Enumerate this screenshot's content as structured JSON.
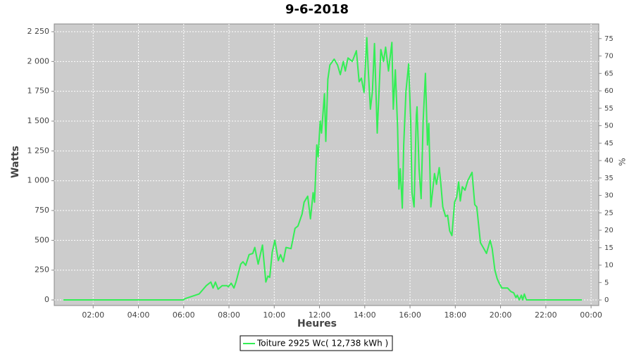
{
  "chart_data": {
    "type": "line",
    "title": "9-6-2018",
    "x_label": "Heures",
    "y_label": "Watts",
    "y2_label": "%",
    "x": [
      0.68,
      6.0,
      6.05,
      6.68,
      7.0,
      7.2,
      7.3,
      7.4,
      7.52,
      7.7,
      7.91,
      7.97,
      8.1,
      8.22,
      8.31,
      8.52,
      8.62,
      8.74,
      8.89,
      9.05,
      9.14,
      9.29,
      9.48,
      9.63,
      9.72,
      9.8,
      9.91,
      10.03,
      10.18,
      10.28,
      10.4,
      10.52,
      10.74,
      10.92,
      11.05,
      11.23,
      11.32,
      11.48,
      11.6,
      11.72,
      11.78,
      11.88,
      11.94,
      12.03,
      12.09,
      12.22,
      12.28,
      12.37,
      12.46,
      12.65,
      12.8,
      12.92,
      13.05,
      13.14,
      13.26,
      13.45,
      13.63,
      13.75,
      13.85,
      13.97,
      14.09,
      14.15,
      14.25,
      14.34,
      14.43,
      14.55,
      14.62,
      14.71,
      14.83,
      14.92,
      15.05,
      15.2,
      15.26,
      15.35,
      15.45,
      15.51,
      15.57,
      15.66,
      15.72,
      15.82,
      15.94,
      16.03,
      16.09,
      16.18,
      16.28,
      16.31,
      16.4,
      16.49,
      16.58,
      16.68,
      16.77,
      16.83,
      16.92,
      17.02,
      17.08,
      17.17,
      17.29,
      17.35,
      17.45,
      17.57,
      17.66,
      17.75,
      17.85,
      17.97,
      18.06,
      18.15,
      18.22,
      18.31,
      18.43,
      18.55,
      18.74,
      18.86,
      18.95,
      19.11,
      19.2,
      19.29,
      19.38,
      19.54,
      19.63,
      19.75,
      19.85,
      19.94,
      20.06,
      20.31,
      20.46,
      20.58,
      20.68,
      20.74,
      20.83,
      20.92,
      20.98,
      21.05,
      21.14,
      23.6
    ],
    "series": [
      {
        "name": "Toiture 2925 Wc( 12,738 kWh )",
        "color": "#33ee55",
        "values": [
          0,
          0,
          10,
          50,
          120,
          150,
          100,
          150,
          90,
          120,
          120,
          110,
          140,
          100,
          150,
          300,
          320,
          290,
          380,
          390,
          440,
          300,
          460,
          150,
          200,
          190,
          400,
          500,
          330,
          380,
          320,
          440,
          430,
          600,
          620,
          720,
          820,
          870,
          680,
          900,
          820,
          1300,
          1200,
          1500,
          1400,
          1730,
          1330,
          1850,
          1970,
          2020,
          1970,
          1890,
          2000,
          1920,
          2030,
          2000,
          2090,
          1830,
          1860,
          1740,
          2200,
          1950,
          1600,
          1750,
          2150,
          1400,
          1700,
          2100,
          2000,
          2120,
          1920,
          2160,
          1600,
          1930,
          1450,
          930,
          1100,
          770,
          1300,
          1750,
          1980,
          1500,
          900,
          780,
          1550,
          1620,
          1100,
          850,
          1500,
          1900,
          1300,
          1480,
          780,
          950,
          1060,
          970,
          1110,
          1000,
          780,
          700,
          710,
          580,
          540,
          820,
          860,
          990,
          830,
          950,
          920,
          1000,
          1070,
          800,
          780,
          480,
          450,
          420,
          390,
          500,
          430,
          250,
          180,
          140,
          100,
          100,
          70,
          60,
          20,
          40,
          0,
          40,
          0,
          50,
          0,
          0
        ]
      }
    ],
    "xlim": [
      0.28,
      24.34
    ],
    "xticks": [
      {
        "value": 2,
        "label": "02:00"
      },
      {
        "value": 4,
        "label": "04:00"
      },
      {
        "value": 6,
        "label": "06:00"
      },
      {
        "value": 8,
        "label": "08:00"
      },
      {
        "value": 10,
        "label": "10:00"
      },
      {
        "value": 12,
        "label": "12:00"
      },
      {
        "value": 14,
        "label": "14:00"
      },
      {
        "value": 16,
        "label": "16:00"
      },
      {
        "value": 18,
        "label": "18:00"
      },
      {
        "value": 20,
        "label": "20:00"
      },
      {
        "value": 22,
        "label": "22:00"
      },
      {
        "value": 24,
        "label": "00:00"
      }
    ],
    "ylim": [
      -47,
      2315
    ],
    "yticks": [
      0,
      250,
      500,
      750,
      {
        "value": 1000,
        "label": "1 000"
      },
      {
        "value": 1250,
        "label": "1 250"
      },
      {
        "value": 1500,
        "label": "1 500"
      },
      {
        "value": 1750,
        "label": "1 750"
      },
      {
        "value": 2000,
        "label": "2 000"
      },
      {
        "value": 2250,
        "label": "2 250"
      }
    ],
    "y2lim": [
      -1.6,
      79.2
    ],
    "y2ticks": [
      0,
      5,
      10,
      15,
      20,
      25,
      30,
      35,
      40,
      45,
      50,
      55,
      60,
      65,
      70,
      75
    ],
    "grid": true
  }
}
